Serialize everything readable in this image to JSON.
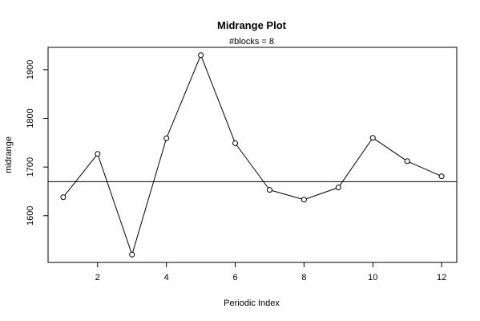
{
  "chart_data": {
    "type": "line",
    "title": "Midrange Plot",
    "subtitle": "#blocks =  8",
    "xlabel": "Periodic Index",
    "ylabel": "midrange",
    "x": [
      1,
      2,
      3,
      4,
      5,
      6,
      7,
      8,
      9,
      10,
      11,
      12
    ],
    "values": [
      1638,
      1727,
      1520,
      1759,
      1930,
      1749,
      1653,
      1633,
      1658,
      1760,
      1712,
      1681
    ],
    "reference_line": 1670,
    "xlim": [
      0.56,
      12.44
    ],
    "ylim": [
      1504,
      1946
    ],
    "xticks": [
      2,
      4,
      6,
      8,
      10,
      12
    ],
    "yticks": [
      1600,
      1700,
      1800,
      1900
    ],
    "grid": false,
    "markers": "open-circle"
  }
}
